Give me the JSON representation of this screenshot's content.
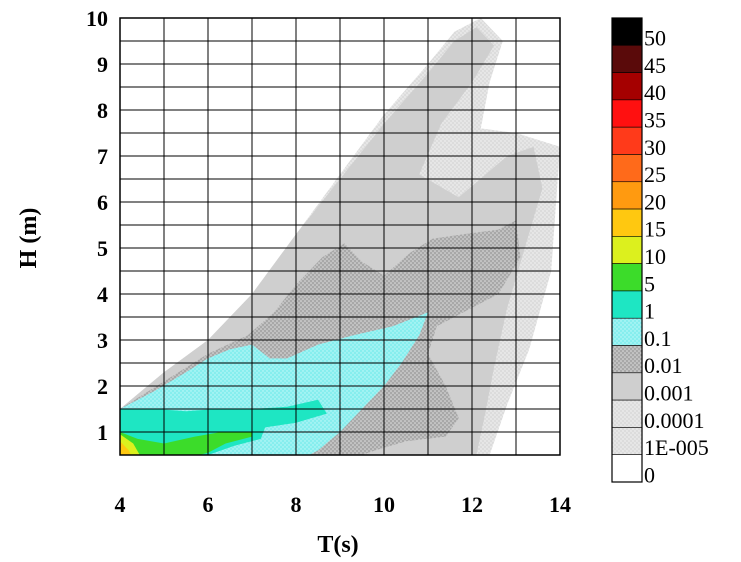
{
  "chart_data": {
    "type": "heatmap",
    "xlabel": "T(s)",
    "ylabel": "H (m)",
    "xlim": [
      4,
      14
    ],
    "ylim": [
      0.5,
      10
    ],
    "x_ticks": [
      "4",
      "6",
      "8",
      "10",
      "12",
      "14"
    ],
    "y_ticks": [
      "1",
      "2",
      "3",
      "4",
      "5",
      "6",
      "7",
      "8",
      "9",
      "10"
    ],
    "grid": true,
    "legend_position": "right",
    "legend": [
      {
        "label": "50",
        "color": "#000000"
      },
      {
        "label": "45",
        "color": "#5a0a0a"
      },
      {
        "label": "40",
        "color": "#a50000"
      },
      {
        "label": "35",
        "color": "#ff1010"
      },
      {
        "label": "30",
        "color": "#ff3a1a"
      },
      {
        "label": "25",
        "color": "#ff6a1a"
      },
      {
        "label": "20",
        "color": "#ff9a10"
      },
      {
        "label": "15",
        "color": "#ffc810"
      },
      {
        "label": "10",
        "color": "#dcf01e"
      },
      {
        "label": "5",
        "color": "#3cdc2a"
      },
      {
        "label": "1",
        "color": "#1ee6c3"
      },
      {
        "label": "0.1",
        "color": "#8ef0ef"
      },
      {
        "label": "0.01",
        "color": "#a8a8a8"
      },
      {
        "label": "0.001",
        "color": "#cfcfcf"
      },
      {
        "label": "0.0001",
        "color": "#dedede"
      },
      {
        "label": "1E-005",
        "color": "#ececec"
      },
      {
        "label": "0",
        "color": "#ffffff"
      }
    ],
    "regions": [
      {
        "level": "1E-005",
        "color": "#ececec",
        "polygon": [
          [
            4,
            1.5
          ],
          [
            5,
            2.3
          ],
          [
            6,
            3.0
          ],
          [
            7,
            4.0
          ],
          [
            8,
            5.3
          ],
          [
            9,
            6.6
          ],
          [
            10,
            7.9
          ],
          [
            11,
            9.0
          ],
          [
            11.6,
            9.7
          ],
          [
            12.2,
            10
          ],
          [
            12.7,
            9.5
          ],
          [
            12.4,
            8.6
          ],
          [
            12.2,
            7.6
          ],
          [
            13,
            7.5
          ],
          [
            14,
            7.2
          ],
          [
            13.8,
            4.5
          ],
          [
            13.3,
            2.8
          ],
          [
            12.8,
            1.6
          ],
          [
            12.4,
            0.5
          ],
          [
            4,
            0.5
          ]
        ]
      },
      {
        "level": "0.001",
        "color": "#cfcfcf",
        "polygon": [
          [
            4,
            1.5
          ],
          [
            5,
            2.3
          ],
          [
            6,
            3.0
          ],
          [
            7,
            4.0
          ],
          [
            8,
            5.3
          ],
          [
            9,
            6.5
          ],
          [
            10,
            7.7
          ],
          [
            11,
            8.8
          ],
          [
            11.6,
            9.5
          ],
          [
            12.1,
            9.8
          ],
          [
            12.5,
            9.4
          ],
          [
            12.0,
            8.6
          ],
          [
            11.3,
            7.7
          ],
          [
            10.8,
            6.6
          ],
          [
            11.7,
            6.1
          ],
          [
            12.8,
            7.0
          ],
          [
            13.4,
            7.2
          ],
          [
            13.6,
            6.3
          ],
          [
            13.2,
            5.0
          ],
          [
            12.8,
            3.7
          ],
          [
            12.5,
            2.4
          ],
          [
            12.3,
            1.4
          ],
          [
            12.1,
            0.5
          ],
          [
            4,
            0.5
          ]
        ]
      },
      {
        "level": "0.01",
        "color": "#a8a8a8",
        "polygon": [
          [
            4,
            1.5
          ],
          [
            5,
            2.1
          ],
          [
            6,
            2.7
          ],
          [
            6.9,
            3.1
          ],
          [
            7.5,
            3.6
          ],
          [
            8,
            4.2
          ],
          [
            8.6,
            4.8
          ],
          [
            9.1,
            5.1
          ],
          [
            9.5,
            4.7
          ],
          [
            10,
            4.4
          ],
          [
            10.6,
            4.9
          ],
          [
            11.1,
            5.2
          ],
          [
            11.8,
            5.3
          ],
          [
            12.6,
            5.4
          ],
          [
            13,
            5.6
          ],
          [
            13.1,
            4.8
          ],
          [
            12.6,
            4.0
          ],
          [
            11.8,
            3.6
          ],
          [
            11.2,
            3.3
          ],
          [
            11.0,
            2.7
          ],
          [
            11.4,
            2.0
          ],
          [
            11.7,
            1.3
          ],
          [
            11.4,
            0.9
          ],
          [
            10.5,
            0.8
          ],
          [
            9.8,
            0.6
          ],
          [
            9.5,
            0.5
          ],
          [
            4,
            0.5
          ]
        ]
      },
      {
        "level": "0.1",
        "color": "#8ef0ef",
        "polygon": [
          [
            4,
            1.5
          ],
          [
            4.8,
            1.9
          ],
          [
            5.5,
            2.3
          ],
          [
            6.0,
            2.6
          ],
          [
            6.5,
            2.8
          ],
          [
            7.0,
            2.9
          ],
          [
            7.4,
            2.6
          ],
          [
            7.8,
            2.6
          ],
          [
            8.5,
            2.9
          ],
          [
            9.3,
            3.1
          ],
          [
            10.2,
            3.3
          ],
          [
            11.0,
            3.6
          ],
          [
            10.8,
            3.1
          ],
          [
            10.4,
            2.5
          ],
          [
            10.0,
            2.0
          ],
          [
            9.5,
            1.5
          ],
          [
            9.0,
            1.0
          ],
          [
            8.5,
            0.6
          ],
          [
            8.3,
            0.5
          ],
          [
            4,
            0.5
          ]
        ]
      },
      {
        "level": "1",
        "color": "#1ee6c3",
        "polygon": [
          [
            4,
            1.5
          ],
          [
            4.8,
            1.5
          ],
          [
            5.5,
            1.45
          ],
          [
            6.2,
            1.5
          ],
          [
            7.0,
            1.5
          ],
          [
            7.8,
            1.55
          ],
          [
            8.5,
            1.7
          ],
          [
            8.7,
            1.4
          ],
          [
            8.0,
            1.2
          ],
          [
            7.3,
            1.1
          ],
          [
            7.2,
            0.85
          ],
          [
            6.6,
            0.7
          ],
          [
            6.0,
            0.5
          ],
          [
            4,
            0.5
          ]
        ]
      },
      {
        "level": "5",
        "color": "#3cdc2a",
        "polygon": [
          [
            4,
            1.0
          ],
          [
            4.4,
            0.85
          ],
          [
            5.0,
            0.75
          ],
          [
            5.7,
            0.9
          ],
          [
            6.3,
            1.0
          ],
          [
            7.0,
            1.0
          ],
          [
            7.0,
            0.9
          ],
          [
            6.4,
            0.75
          ],
          [
            6.0,
            0.55
          ],
          [
            5.8,
            0.5
          ],
          [
            4,
            0.5
          ]
        ]
      },
      {
        "level": "10",
        "color": "#dcf01e",
        "polygon": [
          [
            4,
            0.95
          ],
          [
            4.3,
            0.75
          ],
          [
            4.45,
            0.5
          ],
          [
            4,
            0.5
          ]
        ]
      },
      {
        "level": "20",
        "color": "#ffc810",
        "polygon": [
          [
            4,
            0.8
          ],
          [
            4.2,
            0.6
          ],
          [
            4.25,
            0.5
          ],
          [
            4,
            0.5
          ]
        ]
      }
    ]
  }
}
